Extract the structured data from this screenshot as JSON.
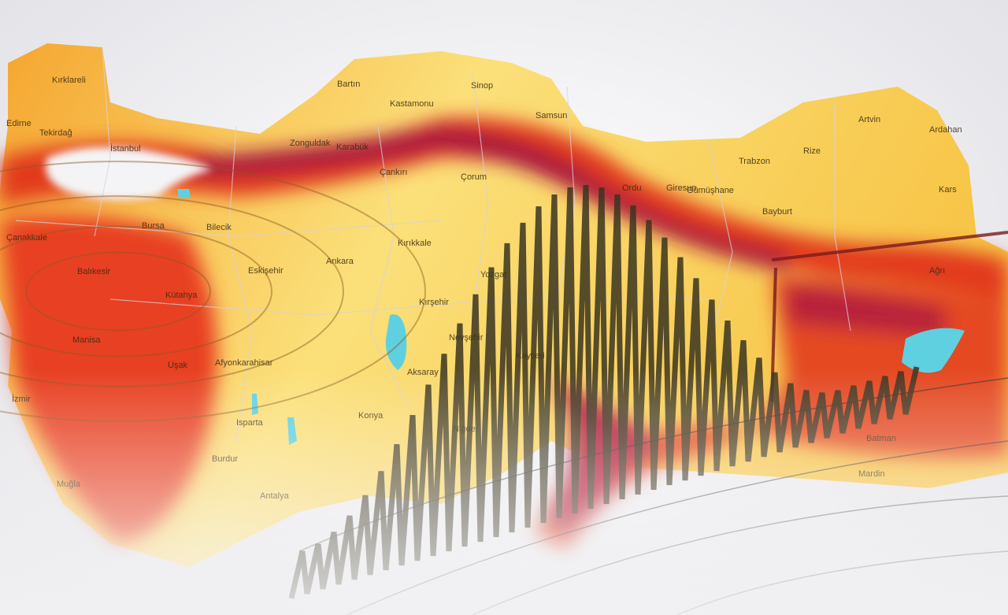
{
  "map": {
    "country": "Turkey",
    "cities": [
      "Kırklareli",
      "Edirne",
      "Tekirdağ",
      "İstanbul",
      "Zonguldak",
      "Bartın",
      "Karabük",
      "Kastamonu",
      "Sinop",
      "Samsun",
      "Artvin",
      "Ardahan",
      "Rize",
      "Ordu",
      "Giresun",
      "Trabzon",
      "Gümüşhane",
      "Bayburt",
      "Kars",
      "Çankırı",
      "Çorum",
      "Bilecik",
      "Bursa",
      "Çanakkale",
      "Balıkesir",
      "Kütahya",
      "Eskişehir",
      "Ankara",
      "Kırıkkale",
      "Yozgat",
      "Kırşehir",
      "Nevşehir",
      "Kayseri",
      "Aksaray",
      "Konya",
      "Niğde",
      "Manisa",
      "Uşak",
      "Afyonkarahisar",
      "İzmir",
      "Isparta",
      "Burdur",
      "Muğla",
      "Antalya",
      "Ağrı",
      "Mardin",
      "Batman"
    ],
    "hazard_colors": {
      "low": "#fbe98a",
      "moderate": "#f7b733",
      "high": "#ee4a1e",
      "very_high": "#b3173a"
    },
    "water_color": "#5fd0e0",
    "overlay": "seismograph-waveform"
  }
}
